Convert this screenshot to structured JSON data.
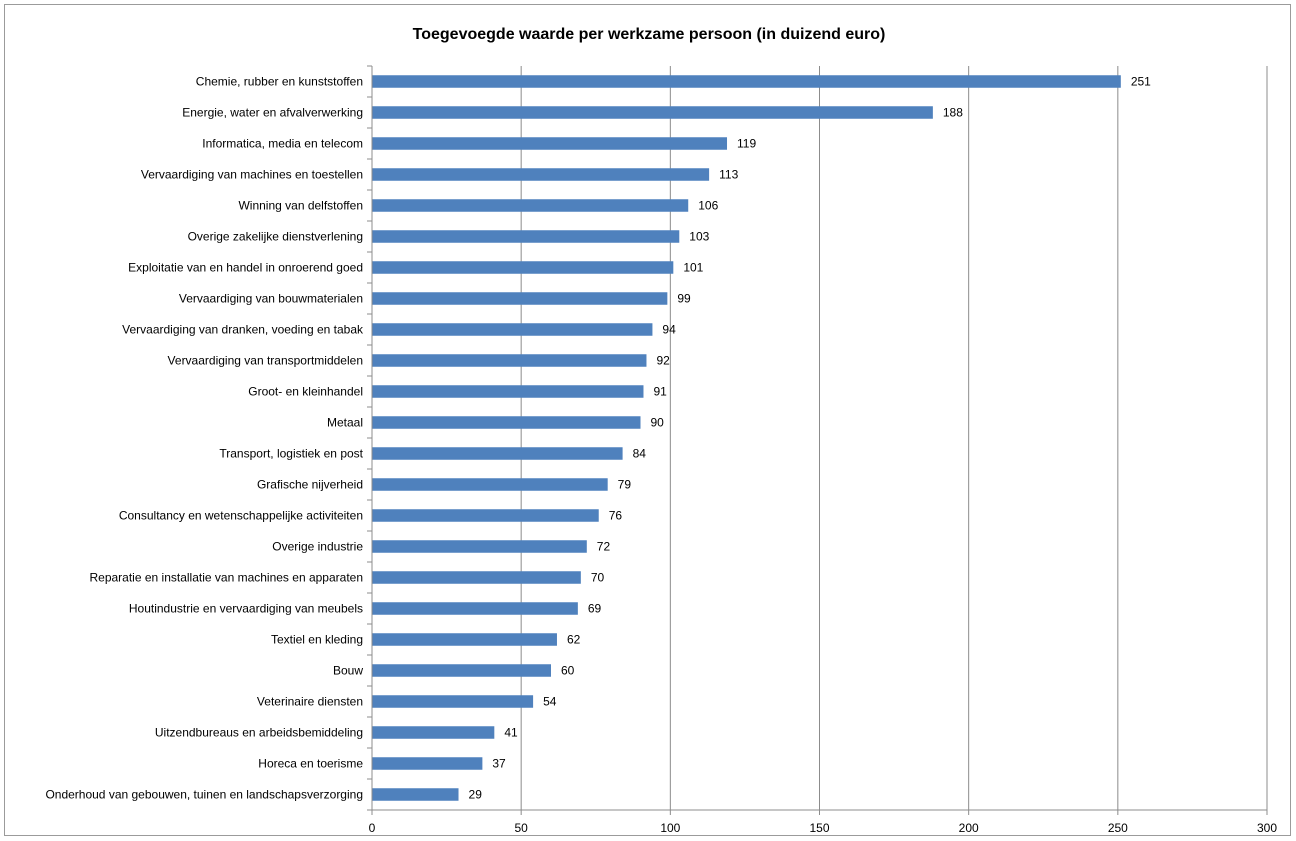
{
  "chart_data": {
    "type": "bar",
    "orientation": "horizontal",
    "title": "Toegevoegde waarde per werkzame persoon (in duizend euro)",
    "xlabel": "",
    "ylabel": "",
    "xlim": [
      0,
      300
    ],
    "ticks": [
      "0",
      "50",
      "100",
      "150",
      "200",
      "250",
      "300"
    ],
    "tick_values": [
      0,
      50,
      100,
      150,
      200,
      250,
      300
    ],
    "grid": true,
    "legend": "none",
    "bar_color": "#4f81bd",
    "data_labels": true,
    "categories": [
      "Chemie, rubber en kunststoffen",
      "Energie, water en afvalverwerking",
      "Informatica, media en telecom",
      "Vervaardiging van machines en toestellen",
      "Winning van delfstoffen",
      "Overige zakelijke dienstverlening",
      "Exploitatie van en handel in onroerend goed",
      "Vervaardiging van bouwmaterialen",
      "Vervaardiging van dranken, voeding en tabak",
      "Vervaardiging van transportmiddelen",
      "Groot- en kleinhandel",
      "Metaal",
      "Transport, logistiek en post",
      "Grafische nijverheid",
      "Consultancy en wetenschappelijke activiteiten",
      "Overige industrie",
      "Reparatie en installatie van machines en apparaten",
      "Houtindustrie en vervaardiging van meubels",
      "Textiel en kleding",
      "Bouw",
      "Veterinaire diensten",
      "Uitzendbureaus en arbeidsbemiddeling",
      "Horeca en toerisme",
      "Onderhoud van gebouwen, tuinen en landschapsverzorging"
    ],
    "values": [
      251,
      188,
      119,
      113,
      106,
      103,
      101,
      99,
      94,
      92,
      91,
      90,
      84,
      79,
      76,
      72,
      70,
      69,
      62,
      60,
      54,
      41,
      37,
      29
    ]
  }
}
